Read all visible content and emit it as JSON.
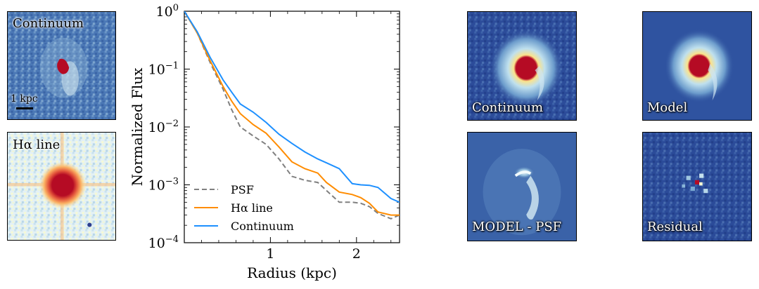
{
  "image_panels": {
    "continuum": {
      "label": "Continuum",
      "scale_label": "1 kpc"
    },
    "halpha": {
      "label": "Hα line"
    },
    "fit_continuum": {
      "label": "Continuum"
    },
    "fit_model": {
      "label": "Model"
    },
    "fit_model_minus_psf": {
      "label": "MODEL - PSF"
    },
    "fit_residual": {
      "label": "Residual"
    }
  },
  "chart_data": {
    "type": "line",
    "title": "",
    "xlabel": "Radius (kpc)",
    "ylabel": "Normalized Flux",
    "x_scale": "linear",
    "y_scale": "log",
    "xlim": [
      0.0,
      2.5
    ],
    "ylim": [
      0.0001,
      1.0
    ],
    "x_ticks": [
      1,
      2
    ],
    "x_tick_labels": [
      "1",
      "2"
    ],
    "y_ticks": [
      0.0001,
      0.001,
      0.01,
      0.1,
      1.0
    ],
    "y_tick_labels": [
      {
        "base": "10",
        "exp": "−4"
      },
      {
        "base": "10",
        "exp": "−3"
      },
      {
        "base": "10",
        "exp": "−2"
      },
      {
        "base": "10",
        "exp": "−1"
      },
      {
        "base": "10",
        "exp": "0"
      }
    ],
    "grid": false,
    "legend_position": "lower-left",
    "series": [
      {
        "name": "PSF",
        "color": "#808080",
        "dash": "dashed",
        "x": [
          0.0,
          0.15,
          0.3,
          0.45,
          0.55,
          0.65,
          0.8,
          0.95,
          1.1,
          1.25,
          1.4,
          1.55,
          1.65,
          1.8,
          1.95,
          2.05,
          2.15,
          2.25,
          2.4,
          2.5
        ],
        "y": [
          1.0,
          0.42,
          0.13,
          0.045,
          0.02,
          0.01,
          0.007,
          0.005,
          0.0028,
          0.0014,
          0.0012,
          0.0011,
          0.0008,
          0.0005,
          0.0005,
          0.00048,
          0.00042,
          0.00032,
          0.00026,
          0.0003
        ]
      },
      {
        "name": "Hα line",
        "color": "#ff8c00",
        "dash": "solid",
        "x": [
          0.0,
          0.15,
          0.3,
          0.45,
          0.55,
          0.65,
          0.8,
          0.95,
          1.1,
          1.25,
          1.4,
          1.55,
          1.65,
          1.8,
          1.95,
          2.05,
          2.15,
          2.25,
          2.4,
          2.5
        ],
        "y": [
          1.0,
          0.42,
          0.14,
          0.05,
          0.028,
          0.017,
          0.011,
          0.0078,
          0.0045,
          0.0025,
          0.0019,
          0.0016,
          0.0011,
          0.00075,
          0.00068,
          0.0006,
          0.00048,
          0.00034,
          0.0003,
          0.0003
        ]
      },
      {
        "name": "Continuum",
        "color": "#1e90ff",
        "dash": "solid",
        "x": [
          0.0,
          0.15,
          0.3,
          0.45,
          0.55,
          0.65,
          0.8,
          0.95,
          1.1,
          1.25,
          1.4,
          1.55,
          1.65,
          1.8,
          1.95,
          2.05,
          2.15,
          2.25,
          2.4,
          2.5
        ],
        "y": [
          1.0,
          0.44,
          0.16,
          0.065,
          0.04,
          0.025,
          0.018,
          0.012,
          0.0075,
          0.0052,
          0.0037,
          0.0028,
          0.0024,
          0.0019,
          0.00105,
          0.001,
          0.00098,
          0.0009,
          0.00058,
          0.0005
        ]
      }
    ]
  },
  "colors": {
    "map_dark_blue": "#2c3f90",
    "map_mid_blue": "#4a74b4",
    "map_light": "#e6f2f7",
    "map_pale_yellow": "#f4f9c8",
    "map_red": "#b50b24"
  }
}
